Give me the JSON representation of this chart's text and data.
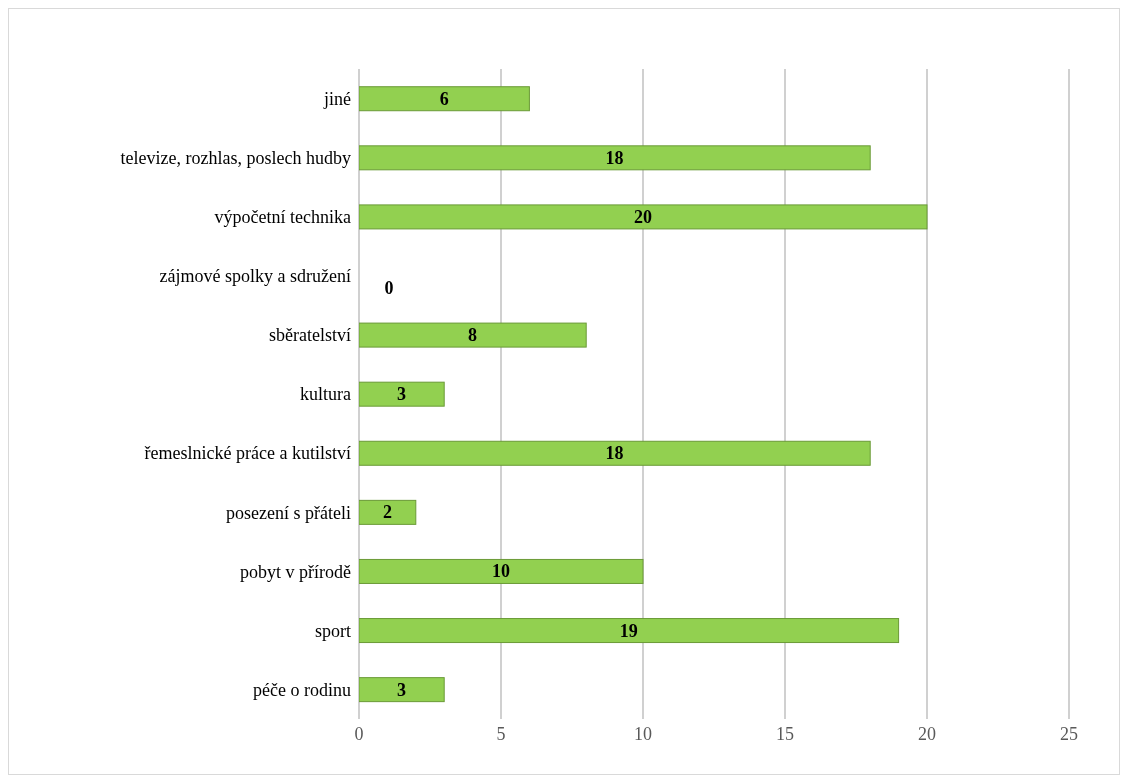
{
  "chart_data": {
    "type": "bar",
    "orientation": "horizontal",
    "categories": [
      "jiné",
      "televize, rozhlas, poslech hudby",
      "výpočetní technika",
      "zájmové spolky a sdružení",
      "sběratelství",
      "kultura",
      "řemeslnické práce a kutilství",
      "posezení s přáteli",
      "pobyt v přírodě",
      "sport",
      "péče o rodinu"
    ],
    "values": [
      6,
      18,
      20,
      0,
      8,
      3,
      18,
      2,
      10,
      19,
      3
    ],
    "color": "#92d050",
    "xlim": [
      0,
      25
    ],
    "xticks": [
      0,
      5,
      10,
      15,
      20,
      25
    ],
    "grid": "x",
    "data_labels": true
  }
}
